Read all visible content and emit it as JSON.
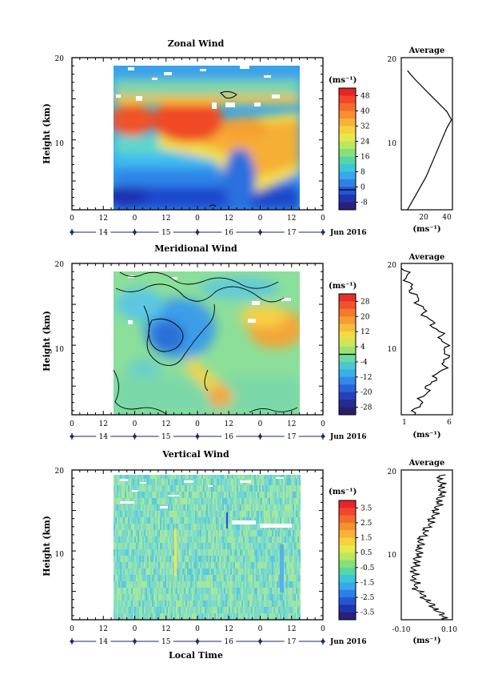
{
  "time_axis": {
    "hour_ticks": [
      "0",
      "12",
      "0",
      "12",
      "0",
      "12",
      "0",
      "12",
      "0"
    ],
    "day_labels": [
      "14",
      "15",
      "16",
      "17"
    ],
    "date_label": "Jun 2016",
    "xlabel": "Local Time"
  },
  "panels": [
    {
      "title": "Zonal Wind",
      "ylabel": "Height (km)",
      "yticks": [
        "20",
        "10"
      ],
      "unit": "(ms⁻¹)",
      "colorbar_labels": [
        "48",
        "40",
        "32",
        "24",
        "16",
        "8",
        "0",
        "-8"
      ],
      "avg_title": "Average",
      "avg_xticks": [
        "20",
        "40"
      ],
      "avg_yticks": [
        "20",
        "10"
      ],
      "avg_unit": "(ms⁻¹)"
    },
    {
      "title": "Meridional Wind",
      "ylabel": "Height (km)",
      "yticks": [
        "20",
        "10"
      ],
      "unit": "(ms⁻¹)",
      "colorbar_labels": [
        "28",
        "20",
        "12",
        "4",
        "-4",
        "-12",
        "-20",
        "-28"
      ],
      "avg_title": "Average",
      "avg_xticks": [
        "1",
        "6"
      ],
      "avg_yticks": [
        "20",
        "10"
      ],
      "avg_unit": "(ms⁻¹)"
    },
    {
      "title": "Vertical Wind",
      "ylabel": "Height (km)",
      "yticks": [
        "20",
        "10"
      ],
      "unit": "(ms⁻¹)",
      "colorbar_labels": [
        "3.5",
        "2.5",
        "1.5",
        "0.5",
        "-0.5",
        "-1.5",
        "-2.5",
        "-3.5"
      ],
      "avg_title": "Average",
      "avg_xticks": [
        "-0.10",
        "0.10"
      ],
      "avg_yticks": [
        "20",
        "10"
      ],
      "avg_unit": "(ms⁻¹)"
    }
  ],
  "chart_data": [
    {
      "type": "heatmap",
      "title": "Zonal Wind",
      "ylabel": "Height (km)",
      "xlabel": "",
      "y_range_km": [
        2,
        20
      ],
      "x_range": [
        "14 Jun 00 LT",
        "18 Jun 00 LT"
      ],
      "data_x_range_hours": [
        15,
        86
      ],
      "colorbar_range": [
        -8,
        52
      ],
      "colorbar_ticks": [
        48,
        40,
        32,
        24,
        16,
        8,
        0,
        -8
      ],
      "zero_contour": true,
      "profile_summary": [
        {
          "height_km": 2,
          "value": 6
        },
        {
          "height_km": 4,
          "value": 14
        },
        {
          "height_km": 6,
          "value": 22
        },
        {
          "height_km": 8,
          "value": 28
        },
        {
          "height_km": 10,
          "value": 34
        },
        {
          "height_km": 12,
          "value": 40
        },
        {
          "height_km": 13,
          "value": 44
        },
        {
          "height_km": 14,
          "value": 40
        },
        {
          "height_km": 16,
          "value": 26
        },
        {
          "height_km": 18,
          "value": 12
        },
        {
          "height_km": 19,
          "value": 6
        }
      ],
      "colors": [
        "#20185c",
        "#1d3cc0",
        "#2a7ae8",
        "#3bb6ee",
        "#5fd5d0",
        "#a6e67c",
        "#f4e44a",
        "#f7a535",
        "#f05a28",
        "#e02020"
      ]
    },
    {
      "type": "heatmap",
      "title": "Meridional Wind",
      "ylabel": "Height (km)",
      "xlabel": "",
      "y_range_km": [
        2,
        20
      ],
      "colorbar_range": [
        -32,
        32
      ],
      "colorbar_ticks": [
        28,
        20,
        12,
        4,
        -4,
        -12,
        -20,
        -28
      ],
      "zero_contour": true,
      "profile_summary": [
        {
          "height_km": 2,
          "value": 2
        },
        {
          "height_km": 4,
          "value": 3
        },
        {
          "height_km": 6,
          "value": 4
        },
        {
          "height_km": 8,
          "value": 5.5
        },
        {
          "height_km": 10,
          "value": 5.7
        },
        {
          "height_km": 12,
          "value": 5
        },
        {
          "height_km": 14,
          "value": 3.5
        },
        {
          "height_km": 16,
          "value": 2.5
        },
        {
          "height_km": 18,
          "value": 1.5
        },
        {
          "height_km": 20,
          "value": 1
        }
      ]
    },
    {
      "type": "heatmap",
      "title": "Vertical Wind",
      "ylabel": "Height (km)",
      "xlabel": "Local Time",
      "y_range_km": [
        2,
        20
      ],
      "colorbar_range": [
        -4,
        4
      ],
      "colorbar_ticks": [
        3.5,
        2.5,
        1.5,
        0.5,
        -0.5,
        -1.5,
        -2.5,
        -3.5
      ],
      "profile_summary": [
        {
          "height_km": 2,
          "value": 0.09
        },
        {
          "height_km": 4,
          "value": 0.02
        },
        {
          "height_km": 6,
          "value": -0.04
        },
        {
          "height_km": 8,
          "value": -0.05
        },
        {
          "height_km": 10,
          "value": -0.03
        },
        {
          "height_km": 12,
          "value": -0.02
        },
        {
          "height_km": 14,
          "value": 0.02
        },
        {
          "height_km": 16,
          "value": 0.05
        },
        {
          "height_km": 18,
          "value": 0.07
        },
        {
          "height_km": 20,
          "value": 0.06
        }
      ]
    }
  ]
}
